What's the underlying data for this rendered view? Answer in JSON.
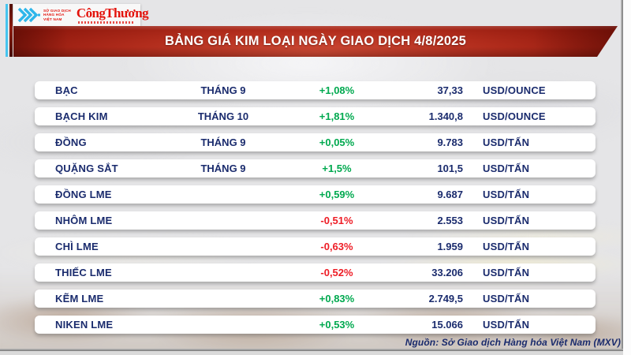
{
  "header": {
    "mxv_logo": {
      "line1": "SỞ GIAO DỊCH",
      "line2": "HÀNG HÓA",
      "line3": "VIỆT NAM"
    },
    "congthuong_logo": "CôngThương"
  },
  "chart_data": {
    "type": "table",
    "title": "BẢNG GIÁ KIM LOẠI NGÀY GIAO DỊCH 4/8/2025",
    "columns": [
      "commodity",
      "contract_month",
      "change_percent",
      "price",
      "unit"
    ],
    "rows": [
      {
        "name": "BẠC",
        "month": "THÁNG 9",
        "change": "+1,08%",
        "price": "37,33",
        "unit": "USD/OUNCE"
      },
      {
        "name": "BẠCH KIM",
        "month": "THÁNG 10",
        "change": "+1,81%",
        "price": "1.340,8",
        "unit": "USD/OUNCE"
      },
      {
        "name": "ĐỒNG",
        "month": "THÁNG 9",
        "change": "+0,05%",
        "price": "9.783",
        "unit": "USD/TẤN"
      },
      {
        "name": "QUẶNG SẮT",
        "month": "THÁNG 9",
        "change": "+1,5%",
        "price": "101,5",
        "unit": "USD/TẤN"
      },
      {
        "name": "ĐỒNG LME",
        "month": "",
        "change": "+0,59%",
        "price": "9.687",
        "unit": "USD/TẤN"
      },
      {
        "name": "NHÔM LME",
        "month": "",
        "change": "-0,51%",
        "price": "2.553",
        "unit": "USD/TẤN"
      },
      {
        "name": "CHÌ LME",
        "month": "",
        "change": "-0,63%",
        "price": "1.959",
        "unit": "USD/TẤN"
      },
      {
        "name": "THIẾC LME",
        "month": "",
        "change": "-0,52%",
        "price": "33.206",
        "unit": "USD/TẤN"
      },
      {
        "name": "KẼM LME",
        "month": "",
        "change": "+0,83%",
        "price": "2.749,5",
        "unit": "USD/TẤN"
      },
      {
        "name": "NIKEN LME",
        "month": "",
        "change": "+0,53%",
        "price": "15.066",
        "unit": "USD/TẤN"
      }
    ],
    "source": "Nguồn: Sở Giao dịch Hàng hóa Việt Nam (MXV)"
  },
  "colors": {
    "positive": "#00a94f",
    "negative": "#ee1c25",
    "navy": "#1a2b6d",
    "banner_red": "#b12c1c",
    "logo_red": "#e3120b",
    "logo_blue": "#2eb6ea"
  }
}
